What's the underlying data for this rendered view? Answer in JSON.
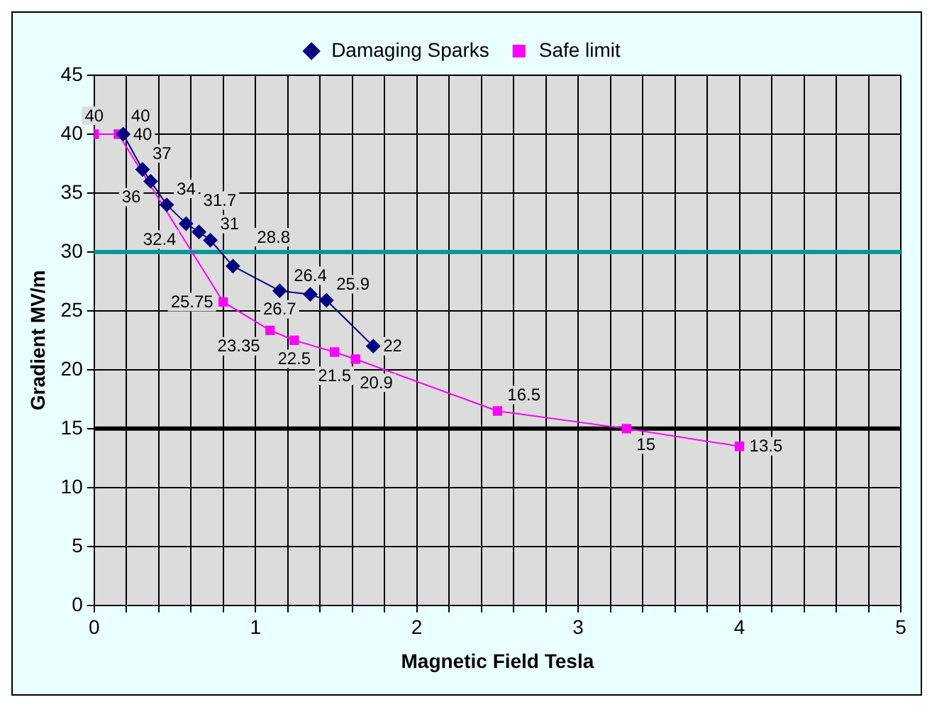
{
  "chart_data": {
    "type": "line",
    "xlabel": "Magnetic Field Tesla",
    "ylabel": "Gradient MV/m",
    "xlim": [
      0,
      5
    ],
    "xticks": [
      0,
      {
        "value": 0.2,
        "label": null
      },
      {
        "value": 0.4,
        "label": null
      },
      {
        "value": 0.6,
        "label": null
      },
      {
        "value": 0.8,
        "label": null
      },
      1,
      {
        "value": 1.2,
        "label": null
      },
      {
        "value": 1.4,
        "label": null
      },
      {
        "value": 1.6,
        "label": null
      },
      {
        "value": 1.8,
        "label": null
      },
      2,
      {
        "value": 2.2,
        "label": null
      },
      {
        "value": 2.4,
        "label": null
      },
      {
        "value": 2.6,
        "label": null
      },
      {
        "value": 2.8,
        "label": null
      },
      3,
      {
        "value": 3.2,
        "label": null
      },
      {
        "value": 3.4,
        "label": null
      },
      {
        "value": 3.6,
        "label": null
      },
      {
        "value": 3.8,
        "label": null
      },
      4,
      {
        "value": 4.2,
        "label": null
      },
      {
        "value": 4.4,
        "label": null
      },
      {
        "value": 4.6,
        "label": null
      },
      {
        "value": 4.8,
        "label": null
      },
      5
    ],
    "ylim": [
      0,
      45
    ],
    "yticks": [
      0,
      5,
      10,
      15,
      20,
      25,
      30,
      35,
      40,
      45
    ],
    "grid": true,
    "legend": "top",
    "data_labels": true,
    "series": [
      {
        "name": "Damaging Sparks",
        "color": "#000080",
        "marker": "diamond",
        "x": [
          0.18,
          0.3,
          0.35,
          0.45,
          0.57,
          0.65,
          0.72,
          0.86,
          1.15,
          1.34,
          1.44,
          1.73
        ],
        "values": [
          40,
          37,
          36,
          34,
          32.4,
          31.7,
          31,
          28.8,
          26.7,
          26.4,
          25.9,
          22
        ]
      },
      {
        "name": "Safe limit",
        "color": "#ff00ff",
        "marker": "square",
        "x": [
          0,
          0.15,
          0.8,
          1.09,
          1.24,
          1.49,
          1.62,
          2.5,
          3.3,
          4
        ],
        "values": [
          40,
          40,
          25.75,
          23.35,
          22.5,
          21.5,
          20.9,
          16.5,
          15,
          13.5
        ]
      }
    ],
    "ref_lines": [
      {
        "axis": "y",
        "value": 30,
        "color": "#009999"
      },
      {
        "axis": "y",
        "value": 15,
        "color": "#000000"
      }
    ]
  }
}
